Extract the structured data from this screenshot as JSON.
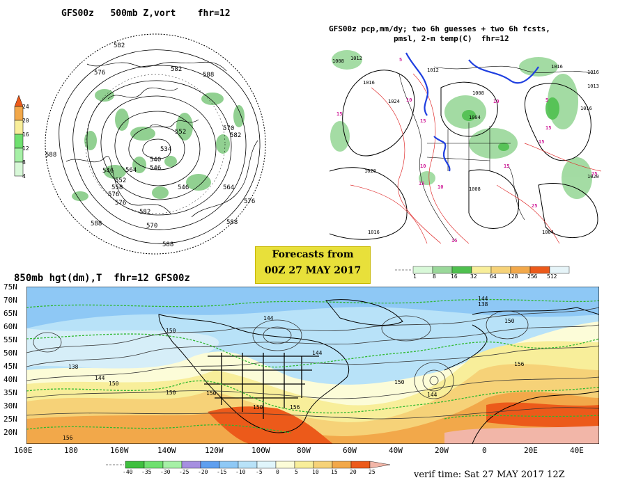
{
  "panel_500mb": {
    "title": "GFS00z   500mb Z,vort    fhr=12",
    "colorbar_labels": [
      "4",
      "8",
      "12",
      "16",
      "20",
      "24"
    ],
    "contour_labels": [
      "582",
      "576",
      "582",
      "588",
      "588",
      "570",
      "582",
      "534",
      "540",
      "546",
      "552",
      "558",
      "564",
      "576",
      "576",
      "588",
      "588",
      "582",
      "570",
      "576",
      "552",
      "546",
      "564",
      "588",
      "546"
    ]
  },
  "panel_precip": {
    "title_line1": "GFS00z pcp,mm/dy; two 6h guesses + two 6h fcsts,",
    "title_line2": "pmsl, 2-m temp(C)  fhr=12",
    "colorbar_labels": [
      "1",
      "8",
      "16",
      "32",
      "64",
      "128",
      "256",
      "512"
    ],
    "isobar_labels": [
      "1008",
      "1012",
      "1016",
      "1024",
      "1020",
      "1012",
      "1008",
      "1004",
      "1016",
      "1016",
      "1013",
      "1020",
      "1016",
      "1008",
      "1016",
      "1004"
    ],
    "temp_labels": [
      "15",
      "10",
      "15",
      "10",
      "15",
      "5",
      "10",
      "15",
      "15",
      "15",
      "25",
      "25",
      "15",
      "10",
      "5"
    ]
  },
  "banner": {
    "line1": "Forecasts from",
    "line2": "00Z 27 MAY 2017"
  },
  "panel_850mb": {
    "title": "850mb hgt(dm),T  fhr=12 GFS00z",
    "lat_labels": [
      "75N",
      "70N",
      "65N",
      "60N",
      "55N",
      "50N",
      "45N",
      "40N",
      "35N",
      "30N",
      "25N",
      "20N"
    ],
    "lon_labels": [
      "160E",
      "180",
      "160W",
      "140W",
      "120W",
      "100W",
      "80W",
      "60W",
      "40W",
      "20W",
      "0",
      "20E",
      "40E"
    ],
    "contour_labels": [
      "144",
      "138",
      "144",
      "150",
      "138",
      "144",
      "150",
      "150",
      "150",
      "144",
      "150",
      "156",
      "156",
      "150",
      "156",
      "144",
      "150"
    ],
    "colorbar_labels": [
      "-40",
      "-35",
      "-30",
      "-25",
      "-20",
      "-15",
      "-10",
      "-5",
      "0",
      "5",
      "10",
      "15",
      "20",
      "25"
    ],
    "colors": {
      "neg40": "#3fbf3f",
      "neg35": "#6fe06f",
      "neg30": "#a6f0a6",
      "neg25": "#a68fe0",
      "neg20": "#5f9fef",
      "neg15": "#8ec8f5",
      "neg10": "#b8e2f8",
      "neg5": "#e0f5fb",
      "zero": "#fcfcd8",
      "pos5": "#f8ee9a",
      "pos10": "#f6d278",
      "pos15": "#f2a84a",
      "pos20": "#ec5a1a",
      "pos25": "#f2b6a8"
    }
  },
  "verif_time": "verif time: Sat 27 MAY 2017 12Z"
}
